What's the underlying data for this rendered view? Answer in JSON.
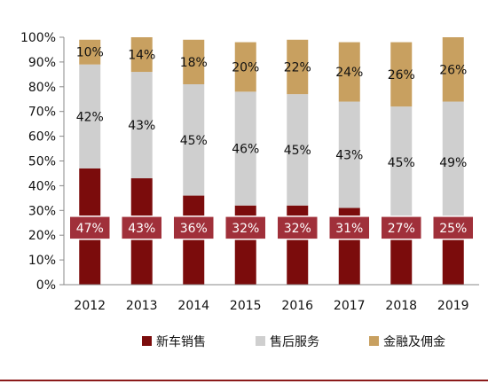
{
  "chart_data": {
    "type": "bar",
    "stacked": true,
    "categories": [
      "2012",
      "2013",
      "2014",
      "2015",
      "2016",
      "2017",
      "2018",
      "2019"
    ],
    "series": [
      {
        "name": "新车销售",
        "color": "#7b0c0c",
        "label_box_color": "#a0303a",
        "values": [
          47,
          43,
          36,
          32,
          32,
          31,
          27,
          25
        ],
        "labels": [
          "47%",
          "43%",
          "36%",
          "32%",
          "32%",
          "31%",
          "27%",
          "25%"
        ]
      },
      {
        "name": "售后服务",
        "color": "#cfcfcf",
        "values": [
          42,
          43,
          45,
          46,
          45,
          43,
          45,
          49
        ],
        "labels": [
          "42%",
          "43%",
          "45%",
          "46%",
          "45%",
          "43%",
          "45%",
          "49%"
        ]
      },
      {
        "name": "金融及佣金",
        "color": "#c8a060",
        "values": [
          10,
          14,
          18,
          20,
          22,
          24,
          26,
          26
        ],
        "labels": [
          "10%",
          "14%",
          "18%",
          "20%",
          "22%",
          "24%",
          "26%",
          "26%"
        ]
      }
    ],
    "yaxis": {
      "min": 0,
      "max": 100,
      "step": 10,
      "tick_labels": [
        "0%",
        "10%",
        "20%",
        "30%",
        "40%",
        "50%",
        "60%",
        "70%",
        "80%",
        "90%",
        "100%"
      ]
    },
    "grid": false,
    "legend": {
      "position": "bottom"
    },
    "bottom_rule_color": "#8b1a1a"
  }
}
